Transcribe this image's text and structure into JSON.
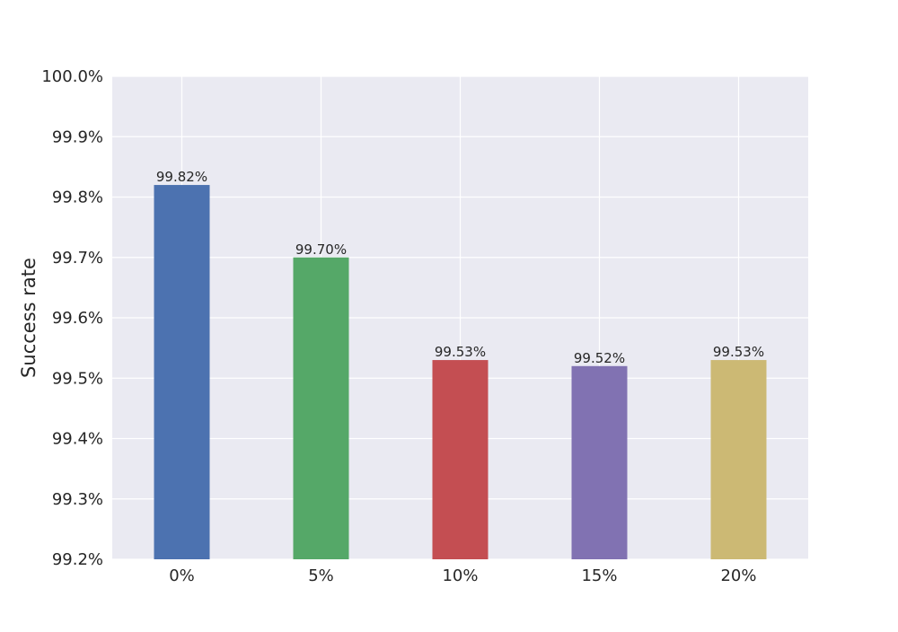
{
  "chart_data": {
    "type": "bar",
    "title": "",
    "xlabel": "",
    "ylabel": "Success rate",
    "categories": [
      "0%",
      "5%",
      "10%",
      "15%",
      "20%"
    ],
    "values": [
      99.82,
      99.7,
      99.53,
      99.52,
      99.53
    ],
    "value_labels": [
      "99.82%",
      "99.70%",
      "99.53%",
      "99.52%",
      "99.53%"
    ],
    "ylim": [
      99.2,
      100.0
    ],
    "yticks": [
      99.2,
      99.3,
      99.4,
      99.5,
      99.6,
      99.7,
      99.8,
      99.9,
      100.0
    ],
    "ytick_labels": [
      "99.2%",
      "99.3%",
      "99.4%",
      "99.5%",
      "99.6%",
      "99.7%",
      "99.8%",
      "99.9%",
      "100.0%"
    ],
    "colors": [
      "#4c72b0",
      "#55a868",
      "#c44e52",
      "#8172b2",
      "#ccb974"
    ],
    "background": "#eaeaf2",
    "grid_color": "#ffffff",
    "grid": true,
    "legend": "none"
  }
}
